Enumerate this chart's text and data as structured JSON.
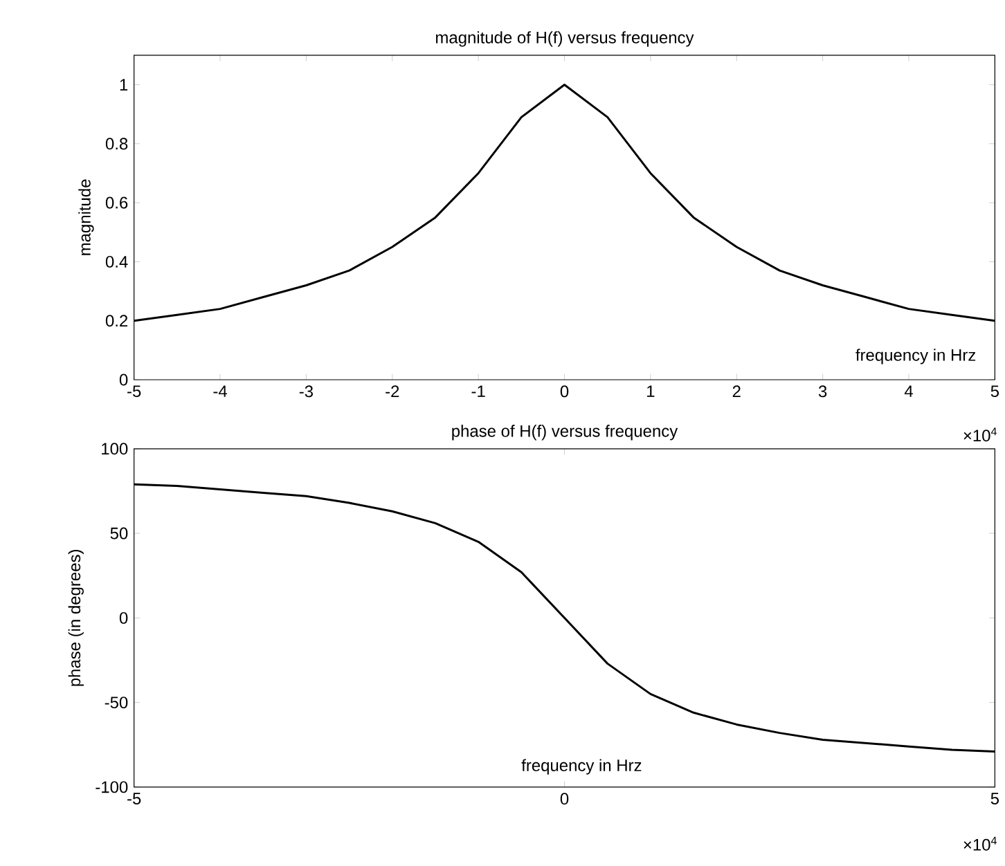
{
  "chart_data": [
    {
      "type": "line",
      "title": "magnitude of H(f) versus frequency",
      "ylabel": "magnitude",
      "xlabel": "frequency in Hrz",
      "annotations": [
        "×10$^{4}$"
      ],
      "series": [
        {
          "color": "#000000",
          "x": [
            -5,
            -4.5,
            -4,
            -3.5,
            -3,
            -2.5,
            -2,
            -1.5,
            -1,
            -0.5,
            0,
            0.5,
            1,
            1.5,
            2,
            2.5,
            3,
            3.5,
            4,
            4.5,
            5
          ],
          "values": [
            0.2,
            0.22,
            0.24,
            0.28,
            0.32,
            0.37,
            0.45,
            0.55,
            0.7,
            0.89,
            1.0,
            0.89,
            0.7,
            0.55,
            0.45,
            0.37,
            0.32,
            0.28,
            0.24,
            0.22,
            0.2
          ]
        }
      ],
      "xlim": [
        -5,
        5
      ],
      "xticks": [
        -5,
        -4,
        -3,
        -2,
        -1,
        0,
        1,
        2,
        3,
        4,
        5
      ],
      "ylim": [
        0,
        1.1
      ],
      "yticks": [
        0,
        0.2,
        0.4,
        0.6,
        0.8,
        1
      ]
    },
    {
      "type": "line",
      "title": "phase of H(f) versus frequency",
      "ylabel": "phase (in degrees)",
      "xlabel": "frequency in Hrz",
      "annotations": [
        "×10$^{4}$"
      ],
      "series": [
        {
          "color": "#000000",
          "x": [
            -5,
            -4.5,
            -4,
            -3.5,
            -3,
            -2.5,
            -2,
            -1.5,
            -1,
            -0.5,
            0,
            0.5,
            1,
            1.5,
            2,
            2.5,
            3,
            3.5,
            4,
            4.5,
            5
          ],
          "values": [
            79,
            78,
            76,
            74,
            72,
            68,
            63,
            56,
            45,
            27,
            0,
            -27,
            -45,
            -56,
            -63,
            -68,
            -72,
            -74,
            -76,
            -78,
            -79
          ]
        }
      ],
      "xlim": [
        -5,
        5
      ],
      "xticks": [
        -5,
        0,
        5
      ],
      "ylim": [
        -100,
        100
      ],
      "yticks": [
        -100,
        -50,
        0,
        50,
        100
      ]
    }
  ]
}
